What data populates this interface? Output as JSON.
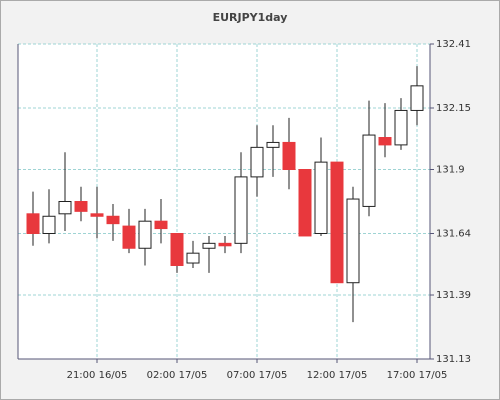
{
  "chart_data": {
    "type": "candlestick",
    "title": "EURJPY1day",
    "categories": [
      null,
      null,
      null,
      null,
      "21:00 16/05",
      null,
      null,
      null,
      null,
      "02:00 17/05",
      null,
      null,
      null,
      null,
      "07:00 17/05",
      null,
      null,
      null,
      null,
      "12:00 17/05",
      null,
      null,
      null,
      null,
      "17:00 17/05"
    ],
    "open": [
      131.72,
      131.64,
      131.72,
      131.77,
      131.72,
      131.71,
      131.67,
      131.58,
      131.69,
      131.64,
      131.52,
      131.58,
      131.6,
      131.6,
      131.87,
      131.99,
      132.01,
      131.9,
      131.64,
      131.93,
      131.44,
      131.75,
      132.03,
      132.0,
      132.14
    ],
    "high": [
      131.81,
      131.82,
      131.97,
      131.83,
      131.83,
      131.76,
      131.74,
      131.74,
      131.78,
      131.64,
      131.61,
      131.63,
      131.63,
      131.97,
      132.08,
      132.08,
      132.11,
      131.9,
      132.03,
      131.93,
      131.83,
      132.18,
      132.17,
      132.19,
      132.32
    ],
    "low": [
      131.59,
      131.6,
      131.65,
      131.69,
      131.62,
      131.61,
      131.56,
      131.51,
      131.6,
      131.48,
      131.5,
      131.48,
      131.56,
      131.56,
      131.79,
      131.87,
      131.82,
      131.63,
      131.63,
      131.44,
      131.28,
      131.71,
      131.95,
      131.98,
      132.08
    ],
    "close": [
      131.64,
      131.71,
      131.77,
      131.73,
      131.71,
      131.68,
      131.58,
      131.69,
      131.66,
      131.51,
      131.56,
      131.6,
      131.59,
      131.87,
      131.99,
      132.01,
      131.9,
      131.63,
      131.93,
      131.44,
      131.78,
      132.04,
      132.0,
      132.14,
      132.24
    ],
    "up_color": "#ffffff",
    "down_color": "#e8383d",
    "ylim": [
      131.13,
      132.41
    ],
    "yticks": [
      131.13,
      131.39,
      131.64,
      131.9,
      132.15,
      132.41
    ],
    "grid": true
  }
}
